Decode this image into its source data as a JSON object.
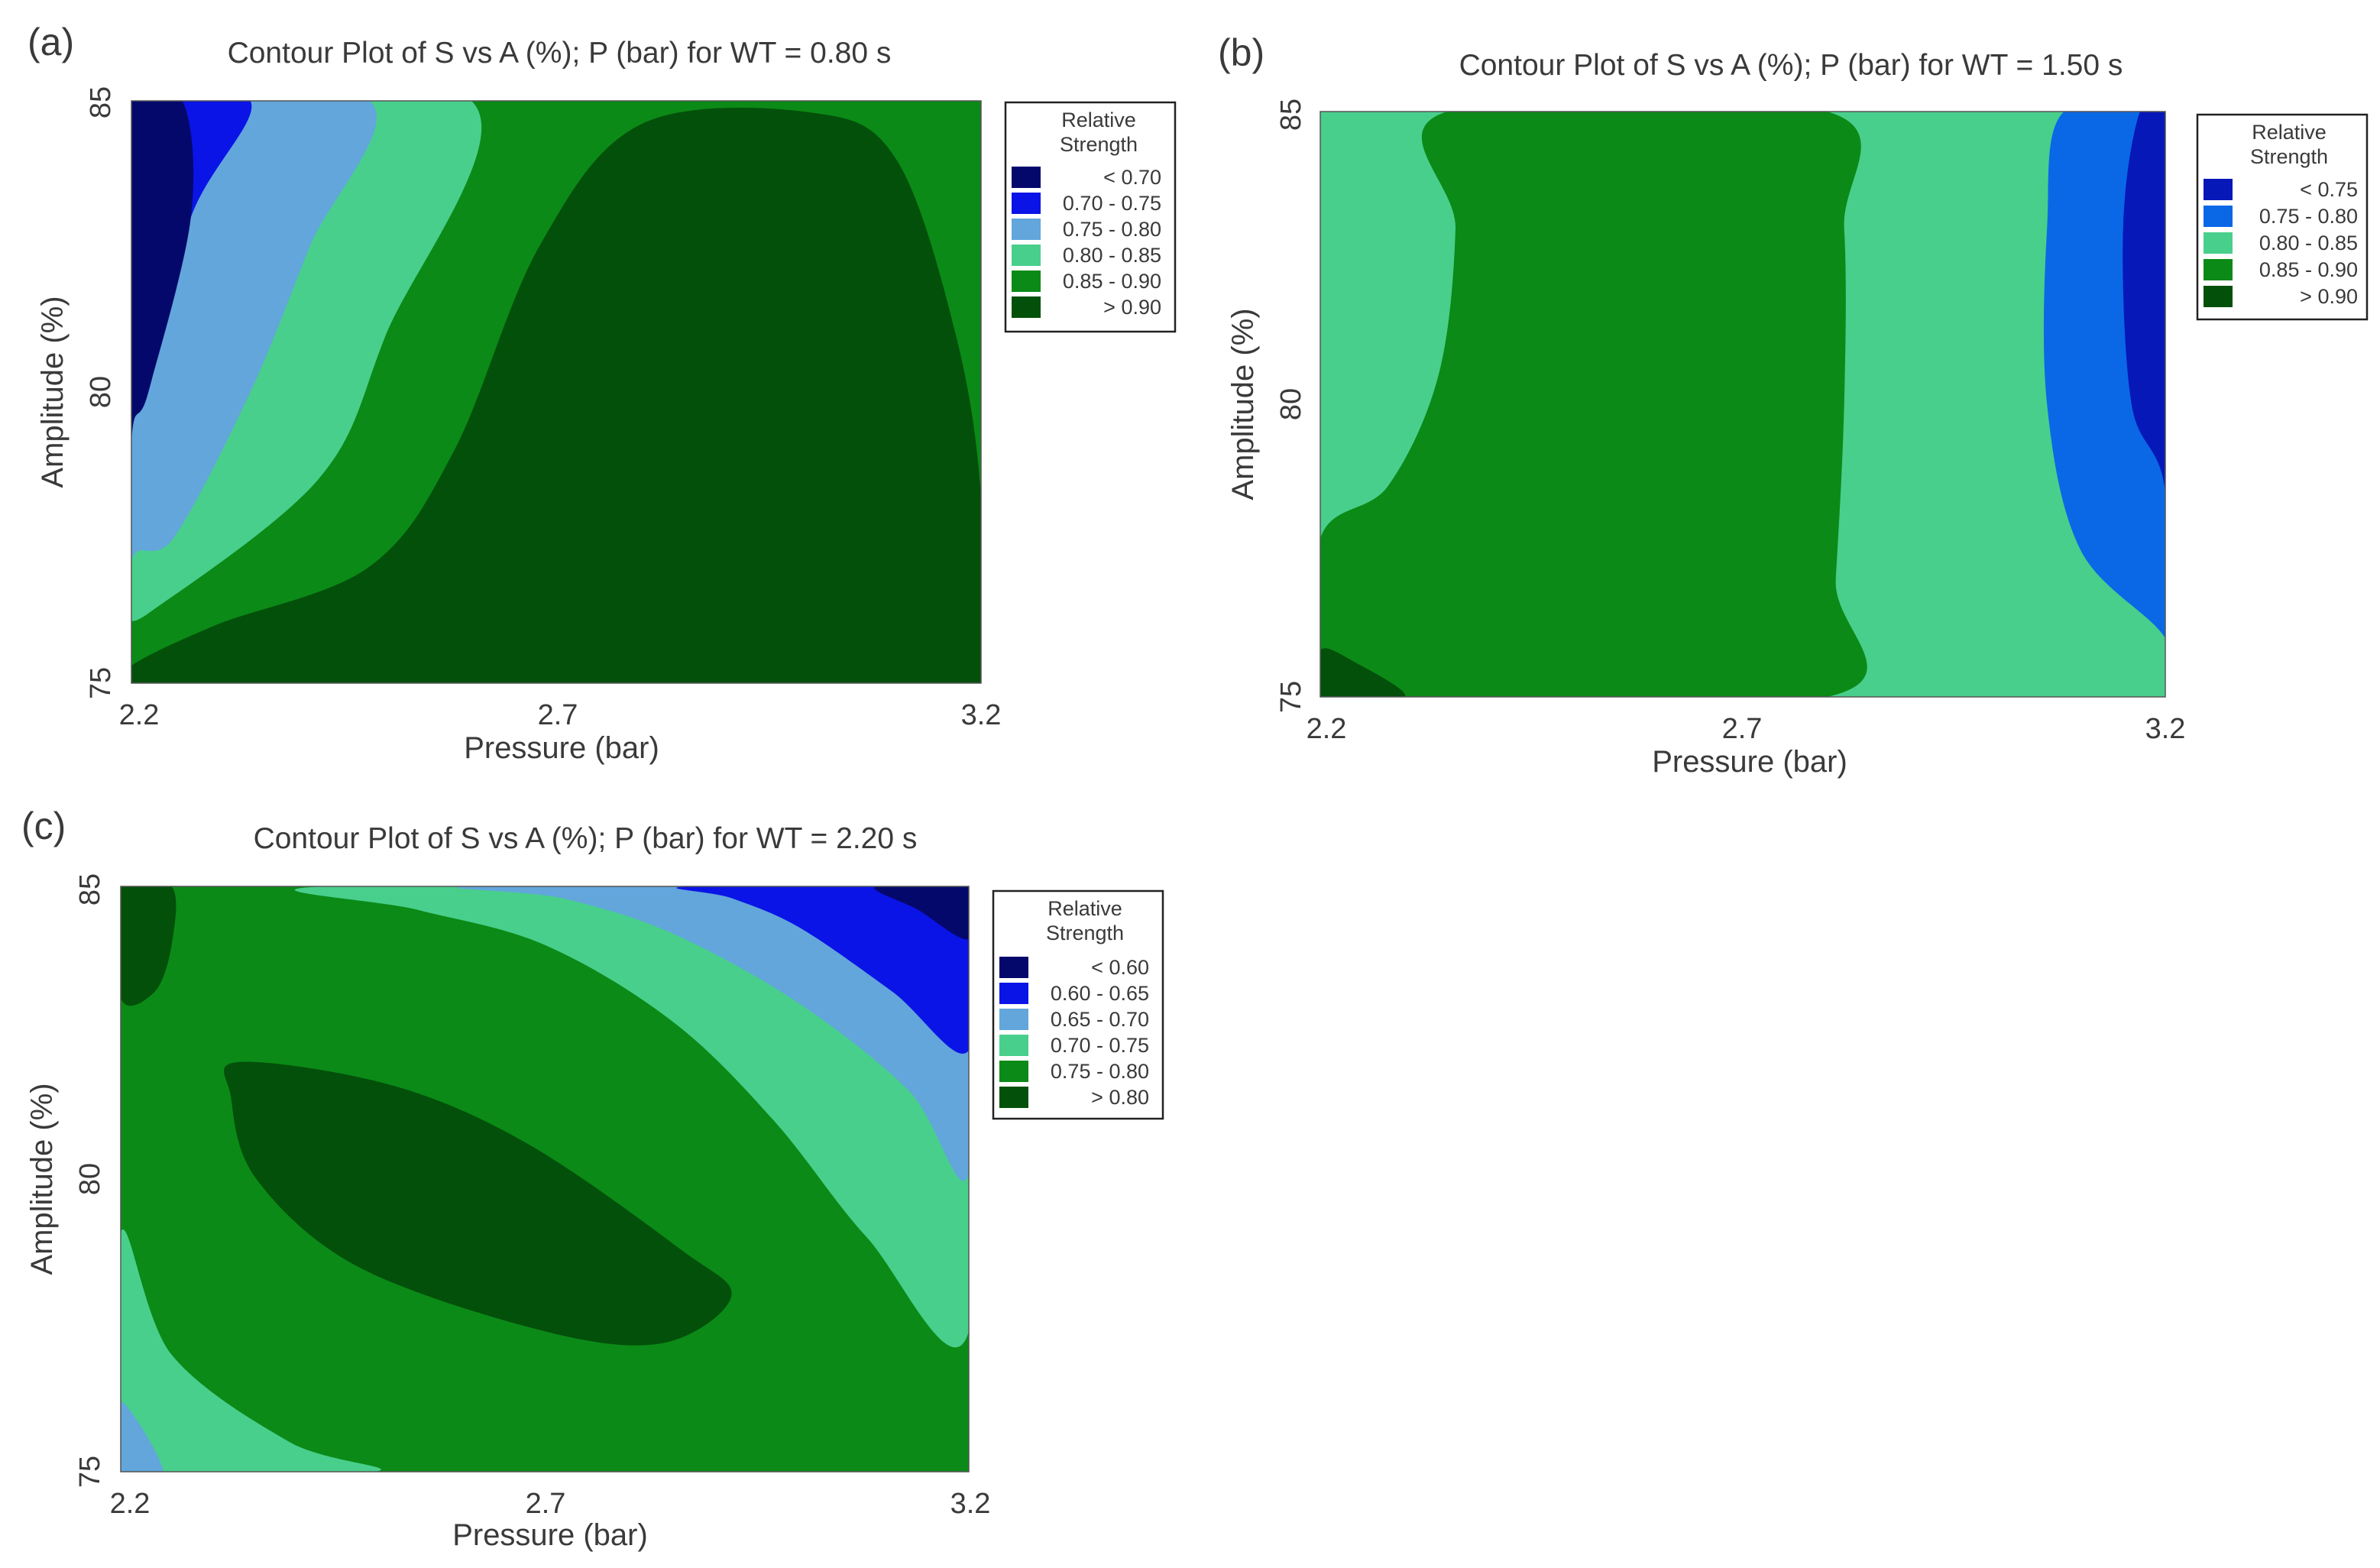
{
  "chart_data": [
    {
      "type": "contour",
      "panel": "(a)",
      "title": "Contour Plot of S vs A (%); P (bar) for WT = 0.80 s",
      "xlabel": "Pressure (bar)",
      "ylabel": "Amplitude (%)",
      "xlim": [
        2.2,
        3.2
      ],
      "ylim": [
        75,
        85
      ],
      "xticks": [
        "2.2",
        "2.7",
        "3.2"
      ],
      "yticks": [
        "75",
        "80",
        "85"
      ],
      "legend_title": [
        "Relative",
        "Strength"
      ],
      "legend_position": "right",
      "levels": [
        {
          "label": "< 0.70",
          "color": "#05086b"
        },
        {
          "label": "0.70 - 0.75",
          "color": "#0a14e6"
        },
        {
          "label": "0.75 - 0.80",
          "color": "#62a6db"
        },
        {
          "label": "0.80 - 0.85",
          "color": "#48cf8c"
        },
        {
          "label": "0.85 - 0.90",
          "color": "#0b8a17"
        },
        {
          "label": "> 0.90",
          "color": "#03500a"
        }
      ],
      "regions": [
        {
          "level": 4,
          "points": [
            [
              2.2,
              75
            ],
            [
              3.2,
              75
            ],
            [
              3.2,
              85
            ],
            [
              2.2,
              85
            ]
          ]
        },
        {
          "level": 3,
          "points": [
            [
              2.2,
              75
            ],
            [
              2.2,
              85
            ],
            [
              2.6,
              85
            ],
            [
              2.5,
              81
            ],
            [
              2.42,
              78.5
            ],
            [
              2.22,
              76.2
            ],
            [
              2.2,
              76.2
            ]
          ]
        },
        {
          "level": 2,
          "points": [
            [
              2.2,
              75
            ],
            [
              2.2,
              85
            ],
            [
              2.48,
              85
            ],
            [
              2.41,
              82.5
            ],
            [
              2.34,
              80
            ],
            [
              2.25,
              77.5
            ],
            [
              2.2,
              77.1
            ]
          ]
        },
        {
          "level": 1,
          "points": [
            [
              2.2,
              75
            ],
            [
              2.2,
              85
            ],
            [
              2.34,
              85
            ],
            [
              2.27,
              83
            ],
            [
              2.22,
              80
            ],
            [
              2.2,
              79.7
            ]
          ]
        },
        {
          "level": 0,
          "points": [
            [
              2.2,
              75
            ],
            [
              2.2,
              85
            ],
            [
              2.26,
              85
            ],
            [
              2.27,
              83
            ],
            [
              2.22,
              80
            ],
            [
              2.2,
              79.1
            ]
          ]
        },
        {
          "level": 5,
          "points": [
            [
              2.2,
              75
            ],
            [
              3.2,
              75
            ],
            [
              3.2,
              78.2
            ],
            [
              3.17,
              81
            ],
            [
              3.1,
              84
            ],
            [
              3.0,
              84.8
            ],
            [
              2.8,
              84.6
            ],
            [
              2.68,
              82.5
            ],
            [
              2.58,
              79
            ],
            [
              2.48,
              77
            ],
            [
              2.3,
              76
            ],
            [
              2.2,
              75.3
            ]
          ]
        }
      ]
    },
    {
      "type": "contour",
      "panel": "(b)",
      "title": "Contour Plot of S vs A (%); P (bar) for WT = 1.50 s",
      "xlabel": "Pressure (bar)",
      "ylabel": "Amplitude (%)",
      "xlim": [
        2.2,
        3.2
      ],
      "ylim": [
        75,
        85
      ],
      "xticks": [
        "2.2",
        "2.7",
        "3.2"
      ],
      "yticks": [
        "75",
        "80",
        "85"
      ],
      "legend_title": [
        "Relative",
        "Strength"
      ],
      "legend_position": "right",
      "levels": [
        {
          "label": "< 0.75",
          "color": "#0618b8"
        },
        {
          "label": "0.75 - 0.80",
          "color": "#0a68e6"
        },
        {
          "label": "0.80 - 0.85",
          "color": "#48cf8c"
        },
        {
          "label": "0.85 - 0.90",
          "color": "#0b8a17"
        },
        {
          "label": "> 0.90",
          "color": "#03500a"
        }
      ],
      "regions": [
        {
          "level": 2,
          "points": [
            [
              2.2,
              75
            ],
            [
              3.2,
              75
            ],
            [
              3.2,
              85
            ],
            [
              2.2,
              85
            ]
          ]
        },
        {
          "level": 3,
          "points": [
            [
              2.2,
              75
            ],
            [
              2.2,
              77.7
            ],
            [
              2.28,
              78.6
            ],
            [
              2.34,
              80.5
            ],
            [
              2.36,
              83
            ],
            [
              2.35,
              85
            ],
            [
              2.8,
              85
            ],
            [
              2.82,
              83
            ],
            [
              2.82,
              80
            ],
            [
              2.81,
              77
            ],
            [
              2.8,
              75
            ]
          ]
        },
        {
          "level": 1,
          "points": [
            [
              3.2,
              75
            ],
            [
              3.2,
              85
            ],
            [
              3.08,
              85
            ],
            [
              3.06,
              83
            ],
            [
              3.06,
              80
            ],
            [
              3.1,
              77.5
            ],
            [
              3.2,
              76
            ]
          ]
        },
        {
          "level": 0,
          "points": [
            [
              3.2,
              75
            ],
            [
              3.2,
              85
            ],
            [
              3.17,
              85
            ],
            [
              3.15,
              83
            ],
            [
              3.16,
              80
            ],
            [
              3.2,
              78.5
            ]
          ]
        },
        {
          "level": 4,
          "points": [
            [
              2.2,
              75
            ],
            [
              2.2,
              75.8
            ],
            [
              2.24,
              75.6
            ],
            [
              2.3,
              75
            ]
          ]
        }
      ]
    },
    {
      "type": "contour",
      "panel": "(c)",
      "title": "Contour Plot of S vs A (%); P (bar) for WT = 2.20 s",
      "xlabel": "Pressure (bar)",
      "ylabel": "Amplitude (%)",
      "xlim": [
        2.2,
        3.2
      ],
      "ylim": [
        75,
        85
      ],
      "xticks": [
        "2.2",
        "2.7",
        "3.2"
      ],
      "yticks": [
        "75",
        "80",
        "85"
      ],
      "legend_title": [
        "Relative",
        "Strength"
      ],
      "legend_position": "right",
      "levels": [
        {
          "label": "< 0.60",
          "color": "#05086b"
        },
        {
          "label": "0.60 - 0.65",
          "color": "#0a14e6"
        },
        {
          "label": "0.65 - 0.70",
          "color": "#62a6db"
        },
        {
          "label": "0.70 - 0.75",
          "color": "#48cf8c"
        },
        {
          "label": "0.75 - 0.80",
          "color": "#0b8a17"
        },
        {
          "label": "> 0.80",
          "color": "#03500a"
        }
      ],
      "regions": [
        {
          "level": 4,
          "points": [
            [
              2.2,
              75
            ],
            [
              3.2,
              75
            ],
            [
              3.2,
              85
            ],
            [
              2.2,
              85
            ]
          ]
        },
        {
          "level": 3,
          "points": [
            [
              2.2,
              75
            ],
            [
              2.2,
              79.1
            ],
            [
              2.26,
              77
            ],
            [
              2.4,
              75.5
            ],
            [
              2.5,
              75
            ]
          ]
        },
        {
          "level": 2,
          "points": [
            [
              2.2,
              75
            ],
            [
              2.2,
              76.2
            ],
            [
              2.25,
              75
            ]
          ]
        },
        {
          "level": 3,
          "points": [
            [
              2.44,
              85
            ],
            [
              3.2,
              85
            ],
            [
              3.2,
              77.4
            ],
            [
              3.08,
              79
            ],
            [
              2.97,
              81
            ],
            [
              2.85,
              82.7
            ],
            [
              2.7,
              84
            ],
            [
              2.55,
              84.6
            ]
          ]
        },
        {
          "level": 2,
          "points": [
            [
              2.62,
              85
            ],
            [
              3.2,
              85
            ],
            [
              3.2,
              80.1
            ],
            [
              3.13,
              81.5
            ],
            [
              3.0,
              83
            ],
            [
              2.85,
              84.2
            ],
            [
              2.72,
              84.8
            ]
          ]
        },
        {
          "level": 1,
          "points": [
            [
              2.87,
              85
            ],
            [
              3.2,
              85
            ],
            [
              3.2,
              82.2
            ],
            [
              3.11,
              83.2
            ],
            [
              3.0,
              84.3
            ],
            [
              2.92,
              84.8
            ]
          ]
        },
        {
          "level": 0,
          "points": [
            [
              3.09,
              85
            ],
            [
              3.2,
              85
            ],
            [
              3.2,
              84.1
            ],
            [
              3.14,
              84.6
            ]
          ]
        },
        {
          "level": 5,
          "points": [
            [
              2.34,
              82
            ],
            [
              2.52,
              81.6
            ],
            [
              2.68,
              80.6
            ],
            [
              2.86,
              78.8
            ],
            [
              2.92,
              78
            ],
            [
              2.84,
              77.2
            ],
            [
              2.7,
              77.4
            ],
            [
              2.48,
              78.5
            ],
            [
              2.36,
              80
            ],
            [
              2.33,
              81.4
            ]
          ]
        },
        {
          "level": 5,
          "points": [
            [
              2.2,
              85
            ],
            [
              2.26,
              85
            ],
            [
              2.26,
              84
            ],
            [
              2.24,
              83.2
            ],
            [
              2.2,
              83.1
            ]
          ]
        }
      ]
    }
  ]
}
